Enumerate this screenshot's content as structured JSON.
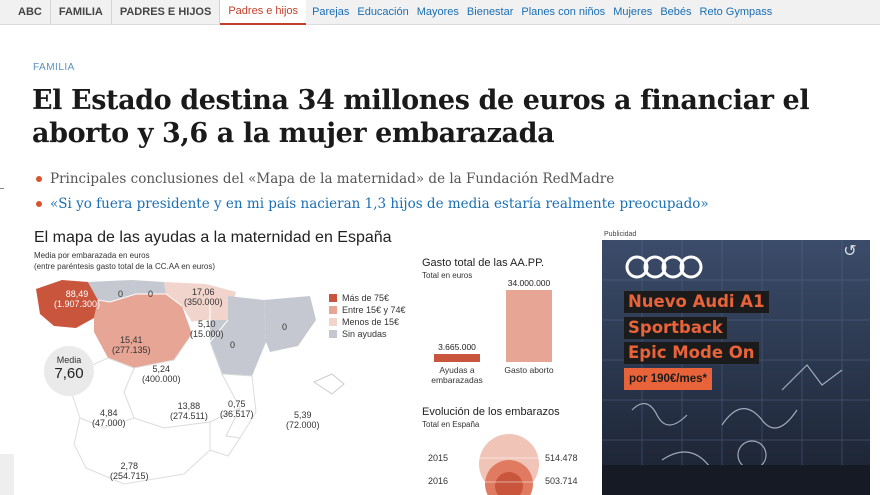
{
  "nav": {
    "crumbs": [
      "ABC",
      "FAMILIA",
      "PADRES E HIJOS"
    ],
    "links": [
      "Padres e hijos",
      "Parejas",
      "Educación",
      "Mayores",
      "Bienestar",
      "Planes con niños",
      "Mujeres",
      "Bebés",
      "Reto Gympass"
    ],
    "active_index": 0
  },
  "article": {
    "section": "FAMILIA",
    "headline": "El Estado destina 34 millones de euros a financiar el aborto y 3,6 a la mujer embarazada",
    "bullets": [
      "Principales conclusiones del «Mapa de la maternidad» de la Fundación RedMadre",
      "«Si yo fuera presidente y en mi país nacieran 1,3 hijos de media estaría realmente preocupado»"
    ]
  },
  "infographic": {
    "title": "El mapa de las ayudas a la maternidad en España",
    "subtitle1": "Media por embarazada en euros",
    "subtitle2": "(entre paréntesis gasto total de la CC.AA en euros)",
    "media_label": "Media",
    "media_value": "7,60",
    "legend": [
      {
        "label": "Más de 75€",
        "color": "#c9553d"
      },
      {
        "label": "Entre 15€ y 74€",
        "color": "#e6a595"
      },
      {
        "label": "Menos de 15€",
        "color": "#f1d4cc"
      },
      {
        "label": "Sin ayudas",
        "color": "#c5c8d0"
      }
    ],
    "map_labels": [
      {
        "line1": "88,49",
        "line2": "(1.907.300)"
      },
      {
        "line1": "0",
        "line2": ""
      },
      {
        "line1": "0",
        "line2": ""
      },
      {
        "line1": "17,06",
        "line2": "(350.000)"
      },
      {
        "line1": "5,10",
        "line2": "(15.000)"
      },
      {
        "line1": "15,41",
        "line2": "(277.135)"
      },
      {
        "line1": "5,24",
        "line2": "(400.000)"
      },
      {
        "line1": "0",
        "line2": ""
      },
      {
        "line1": "0",
        "line2": ""
      },
      {
        "line1": "4,84",
        "line2": "(47.000)"
      },
      {
        "line1": "13,88",
        "line2": "(274.511)"
      },
      {
        "line1": "0,75",
        "line2": "(36.517)"
      },
      {
        "line1": "5,39",
        "line2": "(72.000)"
      },
      {
        "line1": "2,78",
        "line2": "(254.715)"
      }
    ],
    "gasto": {
      "title": "Gasto total de las AA.PP.",
      "subtitle": "Total en euros",
      "bars": [
        {
          "label": "Ayudas a embarazadas",
          "value": 3665000,
          "value_text": "3.665.000",
          "color": "#c9553d"
        },
        {
          "label": "Gasto aborto",
          "value": 34000000,
          "value_text": "34.000.000",
          "color": "#e6a595"
        }
      ]
    },
    "evolucion": {
      "title": "Evolución de los embarazos",
      "subtitle": "Total en España",
      "rows": [
        {
          "year": "2015",
          "value": "514.478"
        },
        {
          "year": "2016",
          "value": "503.714"
        }
      ]
    }
  },
  "ad": {
    "label": "Publicidad",
    "lines": [
      "Nuevo Audi A1",
      "Sportback",
      "Epic Mode On"
    ],
    "price": "por 190€/mes*",
    "logo_icon": "audi-rings-icon",
    "replay_icon": "replay-icon",
    "replay_glyph": "↺"
  }
}
